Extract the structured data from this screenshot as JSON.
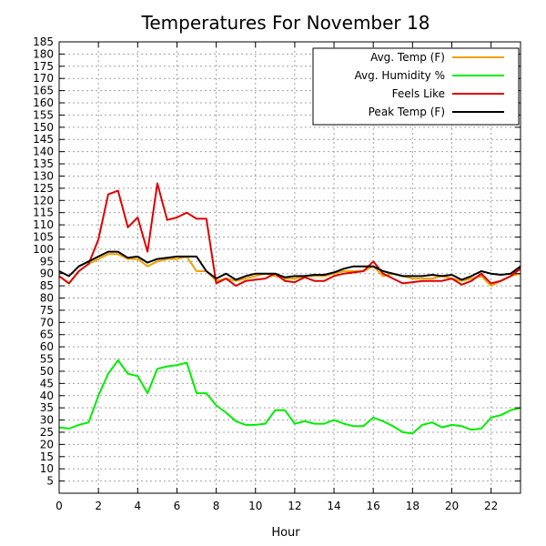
{
  "chart_data": {
    "type": "line",
    "title": "Temperatures For November 18",
    "xlabel": "Hour",
    "ylabel": "",
    "xlim": [
      0,
      23.5
    ],
    "ylim": [
      0,
      185
    ],
    "x_ticks": [
      0,
      2,
      4,
      6,
      8,
      10,
      12,
      14,
      16,
      18,
      20,
      22
    ],
    "y_ticks": [
      5,
      10,
      15,
      20,
      25,
      30,
      35,
      40,
      45,
      50,
      55,
      60,
      65,
      70,
      75,
      80,
      85,
      90,
      95,
      100,
      105,
      110,
      115,
      120,
      125,
      130,
      135,
      140,
      145,
      150,
      155,
      160,
      165,
      170,
      175,
      180,
      185
    ],
    "grid": true,
    "legend_position": "top-right",
    "x": [
      0,
      0.5,
      1,
      1.5,
      2,
      2.5,
      3,
      3.5,
      4,
      4.5,
      5,
      5.5,
      6,
      6.5,
      7,
      7.5,
      8,
      8.5,
      9,
      9.5,
      10,
      10.5,
      11,
      11.5,
      12,
      12.5,
      13,
      13.5,
      14,
      14.5,
      15,
      15.5,
      16,
      16.5,
      17,
      17.5,
      18,
      18.5,
      19,
      19.5,
      20,
      20.5,
      21,
      21.5,
      22,
      22.5,
      23,
      23.5
    ],
    "series": [
      {
        "name": "Avg. Temp (F)",
        "color": "#f0a000",
        "values": [
          89,
          86,
          91,
          94,
          96,
          98,
          98,
          96,
          96,
          93,
          95,
          96,
          96,
          97,
          91,
          91,
          87,
          88,
          87,
          88,
          89,
          90,
          89,
          88,
          88,
          89,
          89,
          89,
          90,
          91,
          91,
          91,
          93,
          89,
          90,
          89,
          88,
          88,
          88,
          89,
          88,
          87,
          88,
          89,
          85,
          87,
          89,
          90
        ]
      },
      {
        "name": "Avg. Humidity %",
        "color": "#00ee00",
        "values": [
          27,
          26.5,
          28,
          29,
          40,
          49,
          54.5,
          49,
          48,
          41,
          51,
          52,
          52.5,
          53.5,
          41,
          41,
          36,
          33,
          29.5,
          28,
          28,
          28.5,
          34,
          34,
          28.5,
          29.5,
          28.5,
          28.5,
          30,
          28.5,
          27.5,
          27.5,
          31,
          29.5,
          27.5,
          25,
          24.5,
          28,
          29,
          27,
          28,
          27.5,
          26,
          26.5,
          31,
          32,
          34,
          35
        ]
      },
      {
        "name": "Feels Like",
        "color": "#dd0000",
        "values": [
          89,
          86,
          91,
          94,
          104,
          122.5,
          124,
          109,
          113,
          99,
          127,
          112,
          113,
          115,
          112.5,
          112.5,
          86,
          88,
          85,
          87,
          87.5,
          88,
          90,
          87,
          86.5,
          88.5,
          87,
          87,
          89,
          90,
          90.5,
          91,
          95,
          90,
          88,
          86,
          86.5,
          87,
          87,
          87,
          88,
          85.5,
          87,
          90,
          86,
          87,
          89,
          92
        ]
      },
      {
        "name": "Peak Temp (F)",
        "color": "#000000",
        "values": [
          91,
          89,
          93,
          95,
          97,
          99,
          99,
          96.5,
          97,
          94.5,
          96,
          96.5,
          97,
          97,
          97,
          91,
          88,
          90,
          87.5,
          89,
          90,
          90,
          90,
          88.5,
          89,
          89,
          89.5,
          89.5,
          90.5,
          92,
          93,
          93,
          93,
          91,
          90,
          89,
          89,
          89,
          89.5,
          89,
          89.5,
          87.5,
          89,
          91,
          90,
          89.5,
          90,
          93
        ]
      }
    ]
  }
}
